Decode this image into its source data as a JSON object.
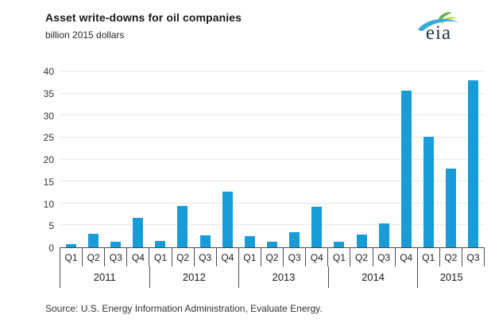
{
  "header": {
    "title": "Asset write-downs for oil companies",
    "subtitle": "billion 2015 dollars",
    "logo_text": "eia"
  },
  "source_note": "Source:  U.S. Energy Information Administration, Evaluate Energy.",
  "colors": {
    "bar": "#189cd8",
    "gridline": "#e8e8e8",
    "axis_frame": "#4d4d4d",
    "logo_leaf_green": "#6cb33f",
    "logo_leaf_yellow": "#c5d92d",
    "logo_swoosh_blue": "#35aadc"
  },
  "chart_data": {
    "type": "bar",
    "title": "Asset write-downs for oil companies",
    "ylabel": "billion 2015 dollars",
    "xlabel": "",
    "ylim": [
      0,
      40
    ],
    "yticks": [
      0,
      5,
      10,
      15,
      20,
      25,
      30,
      35,
      40
    ],
    "grid": true,
    "legend": "none",
    "categories": [
      "Q1",
      "Q2",
      "Q3",
      "Q4",
      "Q1",
      "Q2",
      "Q3",
      "Q4",
      "Q1",
      "Q2",
      "Q3",
      "Q4",
      "Q1",
      "Q2",
      "Q3",
      "Q4",
      "Q1",
      "Q2",
      "Q3"
    ],
    "year_groups": [
      {
        "year": "2011",
        "quarters": [
          "Q1",
          "Q2",
          "Q3",
          "Q4"
        ],
        "values": [
          0.8,
          3.1,
          1.2,
          6.7
        ]
      },
      {
        "year": "2012",
        "quarters": [
          "Q1",
          "Q2",
          "Q3",
          "Q4"
        ],
        "values": [
          1.4,
          9.4,
          2.8,
          12.6
        ]
      },
      {
        "year": "2013",
        "quarters": [
          "Q1",
          "Q2",
          "Q3",
          "Q4"
        ],
        "values": [
          2.5,
          1.2,
          3.4,
          9.2
        ]
      },
      {
        "year": "2014",
        "quarters": [
          "Q1",
          "Q2",
          "Q3",
          "Q4"
        ],
        "values": [
          1.3,
          2.9,
          5.4,
          35.6
        ]
      },
      {
        "year": "2015",
        "quarters": [
          "Q1",
          "Q2",
          "Q3"
        ],
        "values": [
          25.1,
          17.9,
          38.1
        ]
      }
    ]
  }
}
